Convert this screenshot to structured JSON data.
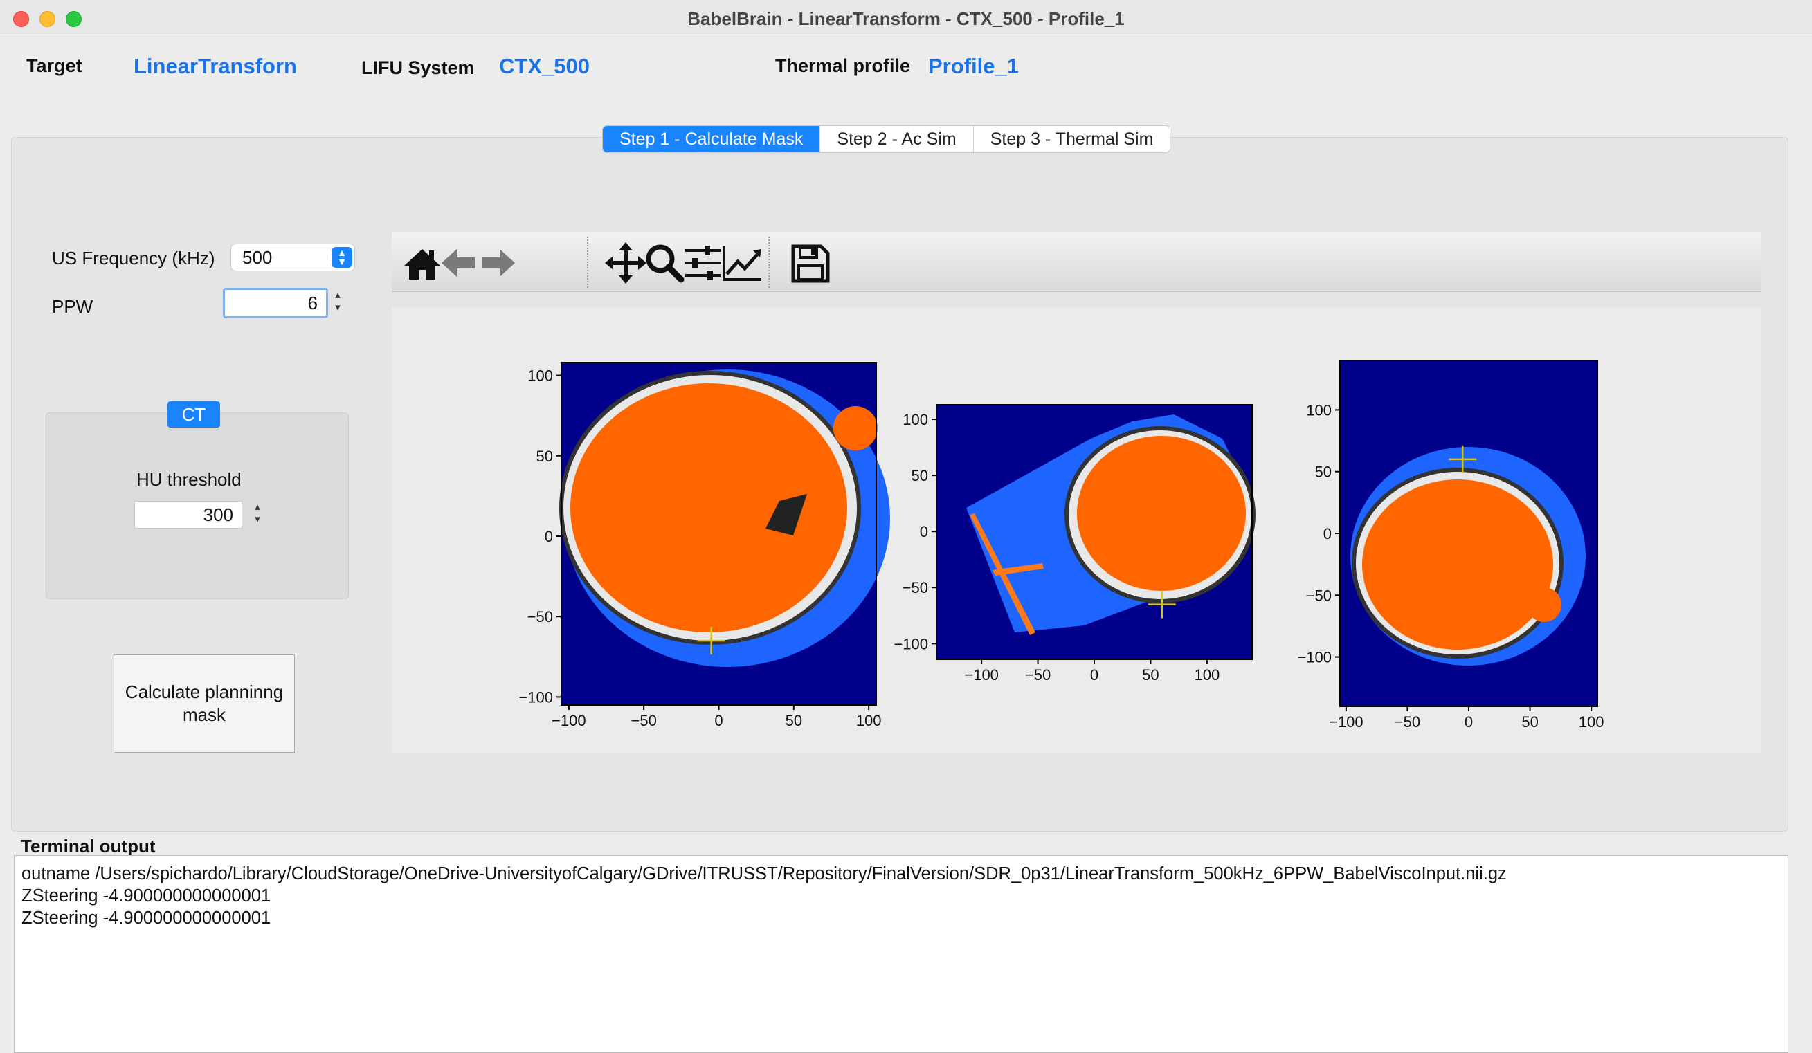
{
  "window": {
    "title": "BabelBrain - LinearTransform - CTX_500 - Profile_1"
  },
  "header": {
    "target_label": "Target",
    "target_value": "LinearTransforn",
    "system_label": "LIFU System",
    "system_value": "CTX_500",
    "thermal_label": "Thermal profile",
    "thermal_value": "Profile_1"
  },
  "tabs": [
    {
      "label": "Step 1 - Calculate Mask",
      "active": true
    },
    {
      "label": "Step 2 - Ac Sim",
      "active": false
    },
    {
      "label": "Step 3 - Thermal Sim",
      "active": false
    }
  ],
  "settings": {
    "freq_label": "US Frequency (kHz)",
    "freq_value": "500",
    "ppw_label": "PPW",
    "ppw_value": "6",
    "ct_group_title": "CT",
    "hu_label": "HU threshold",
    "hu_value": "300",
    "calc_button": "Calculate planninng mask"
  },
  "toolbar": {
    "icons": [
      "home-icon",
      "back-icon",
      "forward-icon",
      "pan-icon",
      "zoom-icon",
      "subplots-icon",
      "edit-curve-icon",
      "save-icon"
    ]
  },
  "colors": {
    "accent": "#1a84ff",
    "link_blue": "#1a73e8",
    "background_mask": "#00008b",
    "skin_mask": "#1e64ff",
    "brain_mask": "#ff6600",
    "target_cross": "#d8c81a"
  },
  "chart_data": [
    {
      "type": "heatmap",
      "view": "axial",
      "x_ticks": [
        "−100",
        "−50",
        "0",
        "50",
        "100"
      ],
      "y_ticks": [
        "−100",
        "−50",
        "0",
        "50",
        "100"
      ],
      "xlim": [
        -105,
        105
      ],
      "ylim": [
        108,
        -105
      ],
      "target": [
        -5,
        -65
      ]
    },
    {
      "type": "heatmap",
      "view": "coronal",
      "x_ticks": [
        "−100",
        "−50",
        "0",
        "50",
        "100"
      ],
      "y_ticks": [
        "−100",
        "−50",
        "0",
        "50",
        "100"
      ],
      "xlim": [
        -140,
        140
      ],
      "ylim": [
        113,
        -114
      ],
      "target": [
        60,
        -65
      ]
    },
    {
      "type": "heatmap",
      "view": "sagittal",
      "x_ticks": [
        "−100",
        "−50",
        "0",
        "50",
        "100"
      ],
      "y_ticks": [
        "−100",
        "−50",
        "0",
        "50",
        "100"
      ],
      "xlim": [
        -105,
        105
      ],
      "ylim": [
        140,
        -140
      ],
      "target": [
        -5,
        60
      ]
    }
  ],
  "terminal": {
    "label": "Terminal output",
    "lines": [
      "outname /Users/spichardo/Library/CloudStorage/OneDrive-UniversityofCalgary/GDrive/ITRUSST/Repository/FinalVersion/SDR_0p31/LinearTransform_500kHz_6PPW_BabelViscoInput.nii.gz",
      "ZSteering -4.900000000000001",
      "ZSteering -4.900000000000001"
    ]
  }
}
